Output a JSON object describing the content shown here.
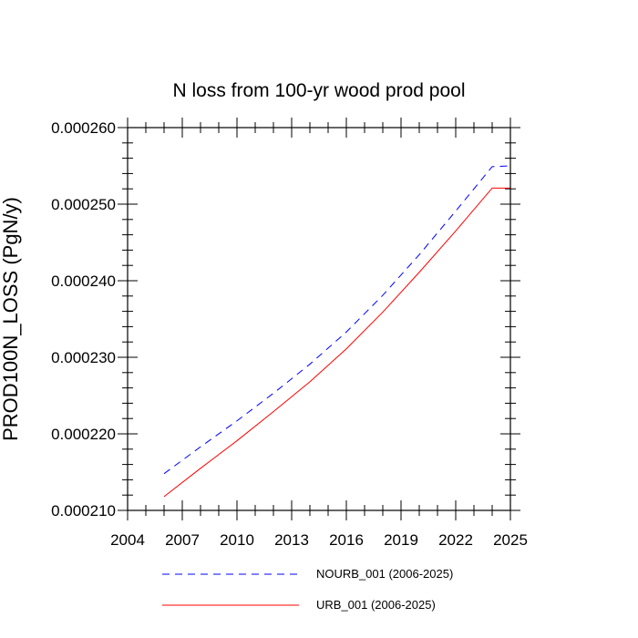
{
  "chart_data": {
    "type": "line",
    "title": "N loss from 100-yr wood prod pool",
    "ylabel": "PROD100N_LOSS  (PgN/y)",
    "xlabel": "",
    "xlim": [
      2004,
      2025
    ],
    "ylim": [
      0.00021,
      0.00026
    ],
    "xticks": [
      2004,
      2007,
      2010,
      2013,
      2016,
      2019,
      2022,
      2025
    ],
    "yticks": [
      "0.000210",
      "0.000220",
      "0.000230",
      "0.000240",
      "0.000250",
      "0.000260"
    ],
    "series": [
      {
        "name": "NOURB_001 (2006-2025)",
        "color": "#0000ff",
        "dash": "dashed",
        "x": [
          2006,
          2008,
          2010,
          2012,
          2014,
          2016,
          2018,
          2020,
          2022,
          2024,
          2025
        ],
        "y": [
          0.0002148,
          0.0002183,
          0.0002217,
          0.0002253,
          0.0002291,
          0.0002333,
          0.0002381,
          0.0002434,
          0.0002491,
          0.0002549,
          0.000255
        ]
      },
      {
        "name": "URB_001 (2006-2025)",
        "color": "#ff0000",
        "dash": "solid",
        "x": [
          2006,
          2008,
          2010,
          2012,
          2014,
          2016,
          2018,
          2020,
          2022,
          2024,
          2025
        ],
        "y": [
          0.0002118,
          0.0002155,
          0.0002191,
          0.0002229,
          0.0002268,
          0.0002311,
          0.0002359,
          0.0002411,
          0.0002465,
          0.0002521,
          0.0002521
        ]
      }
    ],
    "legend_position": "bottom"
  }
}
